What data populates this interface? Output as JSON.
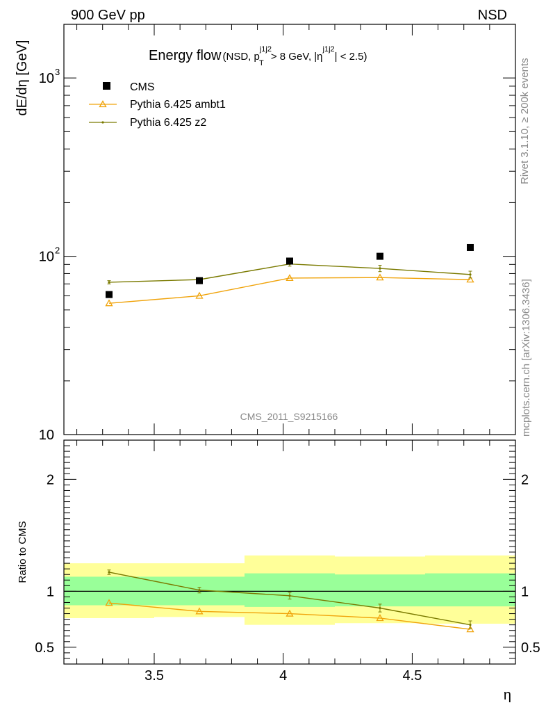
{
  "header": {
    "left": "900 GeV pp",
    "right": "NSD"
  },
  "side_labels": {
    "rivet": "Rivet 3.1.10, ≥ 200k events",
    "mcplots": "mcplots.cern.ch [arXiv:1306.3436]"
  },
  "watermark": "CMS_2011_S9215166",
  "chart_data": {
    "type": "scatter",
    "title": {
      "main": "Energy flow",
      "sub_open": "(NSD, p",
      "sub_T": "T",
      "sub_sup1": "j1j2",
      "sub_mid": " > 8 GeV, |η",
      "sub_sup2": "j1j2",
      "sub_close": "| < 2.5)"
    },
    "xlabel": "η",
    "ylabel": "dE/dη [GeV]",
    "ratio_ylabel": "Ratio to CMS",
    "xlim": [
      3.15,
      4.9
    ],
    "ylim": [
      10,
      2000
    ],
    "ylog": true,
    "ratio_ylim": [
      0.35,
      2.35
    ],
    "x_ticks": [
      3.5,
      4,
      4.5
    ],
    "x_tick_labels": [
      "3.5",
      "4",
      "4.5"
    ],
    "y_ticks": [
      10,
      100,
      1000
    ],
    "y_tick_labels": [
      "10",
      "10",
      "10"
    ],
    "y_tick_exponents": [
      "",
      "2",
      "3"
    ],
    "ratio_ticks": [
      0.5,
      1,
      2
    ],
    "ratio_tick_labels": [
      "0.5",
      "1",
      "2"
    ],
    "bin_edges": [
      3.15,
      3.5,
      3.85,
      4.2,
      4.55,
      4.9
    ],
    "x": [
      3.325,
      3.675,
      4.025,
      4.375,
      4.725
    ],
    "series": [
      {
        "name": "CMS",
        "values": [
          61,
          73,
          94,
          100,
          112
        ],
        "color": "#000000",
        "marker": "square"
      },
      {
        "name": "Pythia 6.425 ambt1",
        "values": [
          54.5,
          60,
          75.5,
          76,
          74
        ],
        "color": "#f0a30a",
        "marker": "triangle"
      },
      {
        "name": "Pythia 6.425 z2",
        "values": [
          71.5,
          74,
          90.5,
          85.5,
          79
        ],
        "color": "#7a7a00",
        "marker": "dot",
        "errors": [
          1.5,
          1.5,
          2.5,
          3.5,
          3.5
        ]
      }
    ],
    "ratio_series": [
      {
        "name": "Pythia 6.425 ambt1",
        "values": [
          0.895,
          0.82,
          0.8,
          0.76,
          0.66
        ]
      },
      {
        "name": "Pythia 6.425 z2",
        "values": [
          1.17,
          1.01,
          0.96,
          0.85,
          0.7
        ],
        "errors": [
          0.02,
          0.025,
          0.03,
          0.035,
          0.035
        ]
      }
    ],
    "ratio_bands": {
      "stat_color": "#99ff99",
      "syst_color": "#ffff99",
      "inner": [
        [
          0.875,
          1.13
        ],
        [
          0.875,
          1.13
        ],
        [
          0.86,
          1.16
        ],
        [
          0.865,
          1.15
        ],
        [
          0.865,
          1.16
        ]
      ],
      "outer": [
        [
          0.76,
          1.25
        ],
        [
          0.77,
          1.25
        ],
        [
          0.7,
          1.32
        ],
        [
          0.715,
          1.31
        ],
        [
          0.71,
          1.32
        ]
      ]
    },
    "legend_position": "top-left"
  }
}
